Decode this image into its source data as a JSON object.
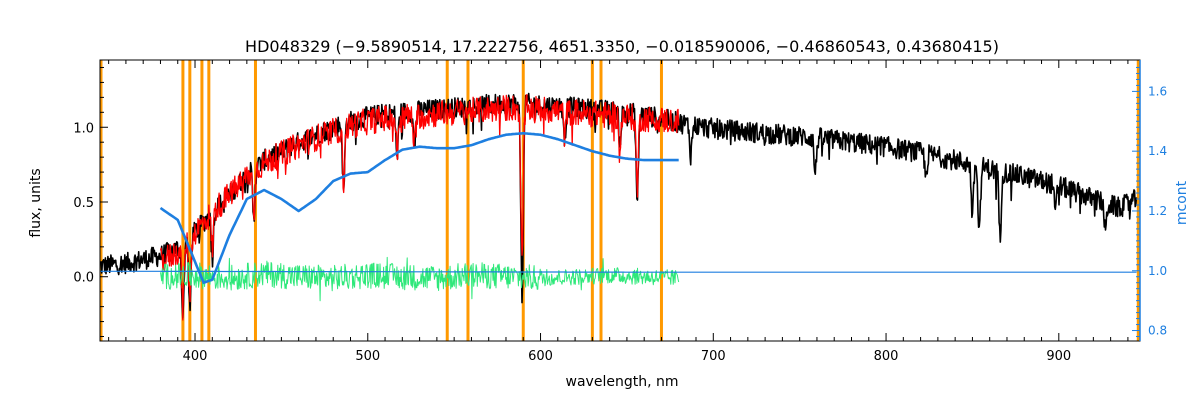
{
  "chart_data": {
    "type": "line",
    "title": "HD048329    (−9.5890514, 17.222756, 4651.3350, −0.018590006, −0.46860543, 0.43680415)",
    "xlabel": "wavelength, nm",
    "ylabel": "flux, units",
    "ylabel_right": "mcont",
    "xlim": [
      345,
      947
    ],
    "ylim": [
      -0.43,
      1.45
    ],
    "ylim_right": [
      0.765,
      1.705
    ],
    "x_ticks": [
      400,
      500,
      600,
      700,
      800,
      900
    ],
    "y_ticks": [
      0.0,
      0.5,
      1.0
    ],
    "y_tick_labels": [
      "0.0",
      "0.5",
      "1.0"
    ],
    "y_right_ticks": [
      0.8,
      1.0,
      1.2,
      1.4,
      1.6
    ],
    "y_right_tick_labels": [
      "0.8",
      "1.0",
      "1.2",
      "1.4",
      "1.6"
    ],
    "grid": false,
    "legend": "none",
    "vertical_lines_nm": [
      345,
      393,
      397,
      404,
      408,
      435,
      546,
      558,
      590,
      630,
      635,
      670,
      946
    ],
    "series": [
      {
        "color": "#000000",
        "x": [
          345,
          360,
          380,
          392,
          400,
          410,
          420,
          430,
          440,
          450,
          460,
          470,
          480,
          490,
          500,
          510,
          520,
          530,
          540,
          550,
          560,
          570,
          580,
          590,
          600,
          610,
          620,
          630,
          640,
          650,
          660,
          670,
          680,
          700,
          720,
          740,
          760,
          780,
          800,
          820,
          840,
          860,
          880,
          900,
          920,
          935,
          945
        ],
        "y": [
          0.07,
          0.09,
          0.14,
          0.2,
          0.3,
          0.43,
          0.55,
          0.68,
          0.78,
          0.84,
          0.9,
          0.95,
          1.0,
          1.04,
          1.07,
          1.09,
          1.1,
          1.11,
          1.12,
          1.13,
          1.14,
          1.15,
          1.16,
          1.16,
          1.15,
          1.14,
          1.13,
          1.12,
          1.11,
          1.1,
          1.08,
          1.06,
          1.03,
          0.99,
          0.97,
          0.95,
          0.93,
          0.9,
          0.87,
          0.83,
          0.78,
          0.72,
          0.67,
          0.61,
          0.52,
          0.46,
          0.52
        ]
      },
      {
        "color": "#ff0000",
        "x": [
          380,
          392,
          400,
          410,
          420,
          430,
          440,
          450,
          460,
          470,
          480,
          490,
          500,
          510,
          520,
          530,
          540,
          550,
          560,
          570,
          580,
          590,
          600,
          610,
          620,
          630,
          640,
          650,
          660,
          670,
          680
        ],
        "y": [
          0.1,
          0.18,
          0.3,
          0.43,
          0.55,
          0.67,
          0.76,
          0.82,
          0.88,
          0.93,
          0.97,
          1.01,
          1.04,
          1.06,
          1.07,
          1.08,
          1.09,
          1.1,
          1.11,
          1.12,
          1.13,
          1.13,
          1.12,
          1.11,
          1.1,
          1.09,
          1.08,
          1.07,
          1.06,
          1.05,
          1.04
        ]
      },
      {
        "color": "#1e7fe0",
        "axis": "right",
        "x": [
          380,
          390,
          400,
          405,
          410,
          420,
          430,
          440,
          450,
          460,
          470,
          480,
          490,
          500,
          510,
          520,
          530,
          540,
          550,
          560,
          570,
          580,
          590,
          600,
          610,
          620,
          630,
          640,
          650,
          660,
          670,
          680
        ],
        "y": [
          1.21,
          1.17,
          1.03,
          0.96,
          0.97,
          1.12,
          1.24,
          1.27,
          1.24,
          1.2,
          1.24,
          1.3,
          1.325,
          1.33,
          1.37,
          1.405,
          1.415,
          1.41,
          1.41,
          1.42,
          1.44,
          1.455,
          1.46,
          1.455,
          1.44,
          1.42,
          1.4,
          1.385,
          1.375,
          1.37,
          1.37,
          1.37
        ]
      },
      {
        "color": "#1e7fe0",
        "axis": "right",
        "x": [
          345,
          380,
          680,
          945
        ],
        "y": [
          0.998,
          0.998,
          0.995,
          0.995
        ]
      },
      {
        "color": "#2ee87a",
        "x": [
          380,
          400,
          420,
          440,
          460,
          480,
          500,
          520,
          540,
          560,
          580,
          600,
          620,
          640,
          660,
          680
        ],
        "y": [
          0.0,
          0.01,
          -0.01,
          0.02,
          0.0,
          -0.01,
          0.01,
          0.0,
          -0.01,
          0.01,
          0.0,
          -0.01,
          0.0,
          0.01,
          0.0,
          -0.01
        ]
      }
    ]
  },
  "colors": {
    "flux_observed": "#000000",
    "flux_model": "#ff0000",
    "continuum": "#1e7fe0",
    "residual": "#2ee87a",
    "vertical_lines": "#ff9900",
    "right_axis": "#1e7fe0"
  }
}
